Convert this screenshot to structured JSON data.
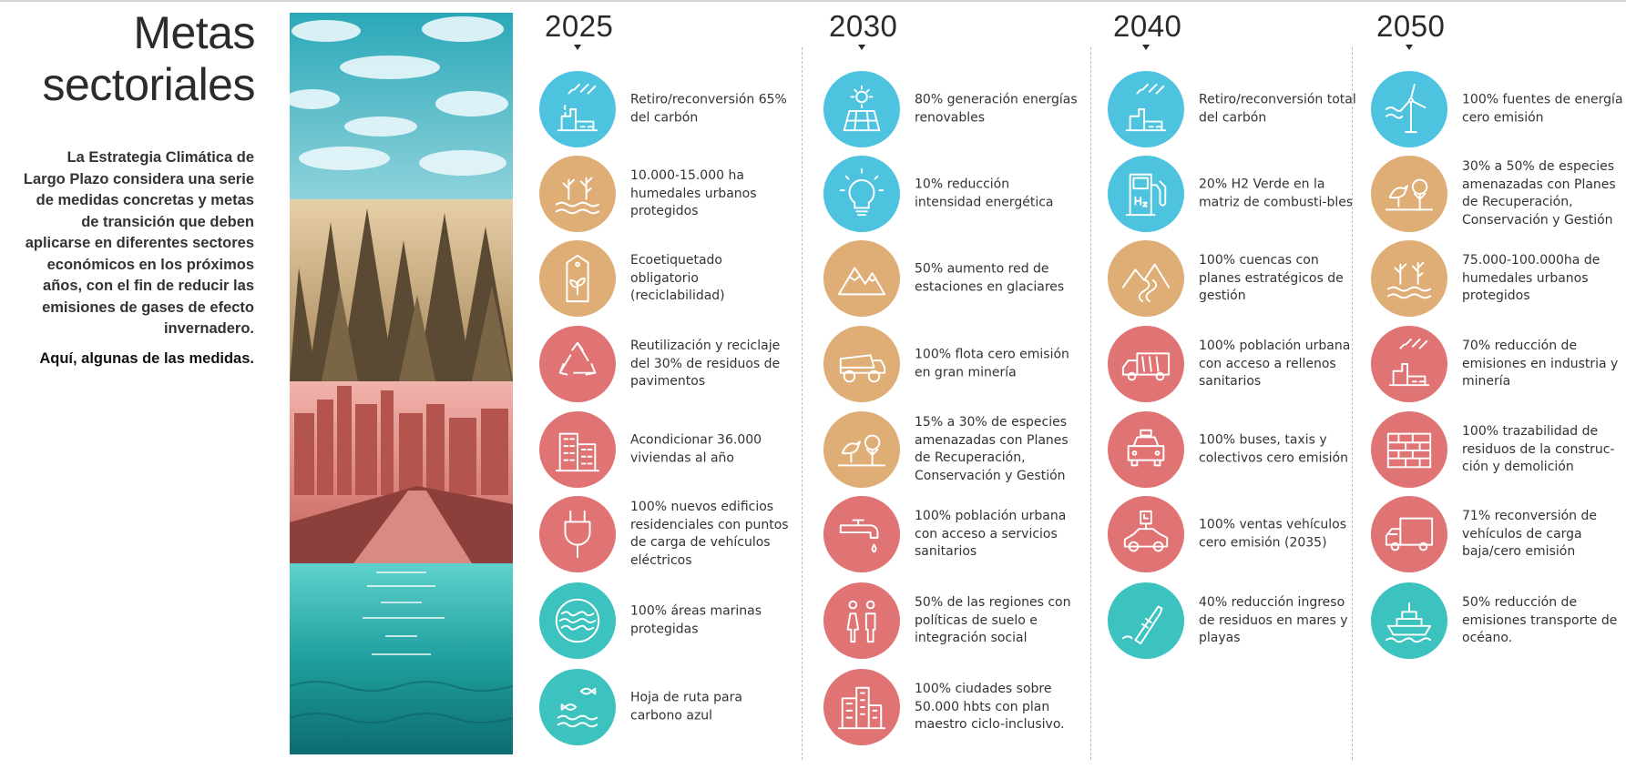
{
  "colors": {
    "blue": "#4ec3e0",
    "tan": "#dfae76",
    "red": "#e07373",
    "teal": "#3cc3bf"
  },
  "title": {
    "line1": "Metas",
    "line2": "sectoriales"
  },
  "intro": {
    "body": "La Estrategia Climática de Largo Plazo considera una serie de medidas concretas y metas de transición que deben aplicarse en diferentes sectores económicos en los próximos años, con el fin de reducir las emisiones de gases de efecto invernadero.",
    "cta": "Aquí, algunas de las medidas."
  },
  "columns": [
    {
      "year": "2025",
      "items": [
        {
          "icon": "coal-plant-icon",
          "color": "#4ec3e0",
          "text": "Retiro/reconversión 65% del carbón"
        },
        {
          "icon": "wetland-icon",
          "color": "#dfae76",
          "text": "10.000-15.000 ha humedales urbanos protegidos"
        },
        {
          "icon": "eco-label-icon",
          "color": "#dfae76",
          "text": "Ecoetiquetado obligatorio (reciclabilidad)"
        },
        {
          "icon": "recycle-icon",
          "color": "#e07373",
          "text": "Reutilización y reciclaje del 30% de residuos de pavimentos"
        },
        {
          "icon": "buildings-icon",
          "color": "#e07373",
          "text": "Acondicionar 36.000 viviendas al año"
        },
        {
          "icon": "plug-icon",
          "color": "#e07373",
          "text": "100% nuevos edificios residenciales con puntos de carga de vehículos eléctricos"
        },
        {
          "icon": "waves-icon",
          "color": "#3cc3bf",
          "text": "100% áreas marinas protegidas"
        },
        {
          "icon": "fish-icon",
          "color": "#3cc3bf",
          "text": "Hoja de ruta para carbono azul"
        }
      ]
    },
    {
      "year": "2030",
      "items": [
        {
          "icon": "solar-panel-icon",
          "color": "#4ec3e0",
          "text": "80% generación energías renovables"
        },
        {
          "icon": "lightbulb-icon",
          "color": "#4ec3e0",
          "text": "10% reducción intensidad energética"
        },
        {
          "icon": "mountains-icon",
          "color": "#dfae76",
          "text": "50% aumento red de estaciones en glaciares"
        },
        {
          "icon": "mining-truck-icon",
          "color": "#dfae76",
          "text": "100% flota cero emisión en gran minería"
        },
        {
          "icon": "bird-tree-icon",
          "color": "#dfae76",
          "text": "15% a 30% de especies amenazadas con Planes de Recuperación, Conservación y Gestión"
        },
        {
          "icon": "faucet-icon",
          "color": "#e07373",
          "text": "100% población urbana con acceso a servicios sanitarios"
        },
        {
          "icon": "people-icon",
          "color": "#e07373",
          "text": "50% de las regiones con políticas de suelo e integración social"
        },
        {
          "icon": "city-icon",
          "color": "#e07373",
          "text": "100% ciudades sobre 50.000 hbts con plan maestro ciclo-inclusivo."
        }
      ]
    },
    {
      "year": "2040",
      "items": [
        {
          "icon": "coal-plant-icon",
          "color": "#4ec3e0",
          "text": "Retiro/reconversión total del carbón"
        },
        {
          "icon": "h2-pump-icon",
          "color": "#4ec3e0",
          "text": "20% H2 Verde en la matriz de combusti-bles"
        },
        {
          "icon": "river-mountains-icon",
          "color": "#dfae76",
          "text": "100% cuencas con planes estratégicos de gestión"
        },
        {
          "icon": "garbage-truck-icon",
          "color": "#e07373",
          "text": "100% población urbana con acceso a rellenos sanitarios"
        },
        {
          "icon": "taxi-icon",
          "color": "#e07373",
          "text": "100% buses, taxis y colectivos cero emisión"
        },
        {
          "icon": "ev-car-icon",
          "color": "#e07373",
          "text": "100% ventas vehículos cero emisión (2035)"
        },
        {
          "icon": "bottle-icon",
          "color": "#3cc3bf",
          "text": "40% reducción ingreso de residuos en mares y playas"
        }
      ]
    },
    {
      "year": "2050",
      "items": [
        {
          "icon": "wind-turbine-icon",
          "color": "#4ec3e0",
          "text": "100% fuentes de energía cero emisión"
        },
        {
          "icon": "bird-tree-icon",
          "color": "#dfae76",
          "text": "30% a 50% de especies amenazadas con Planes de Recuperación, Conservación y Gestión"
        },
        {
          "icon": "wetland-icon",
          "color": "#dfae76",
          "text": "75.000-100.000ha de humedales urbanos protegidos"
        },
        {
          "icon": "factory-icon",
          "color": "#e07373",
          "text": "70% reducción de emisiones en industria y minería"
        },
        {
          "icon": "bricks-icon",
          "color": "#e07373",
          "text": "100% trazabilidad de residuos de la construc-ción y demolición"
        },
        {
          "icon": "cargo-truck-icon",
          "color": "#e07373",
          "text": "71% reconversión de vehículos de carga baja/cero emisión"
        },
        {
          "icon": "ship-icon",
          "color": "#3cc3bf",
          "text": "50% reducción de emisiones transporte de océano."
        }
      ]
    }
  ]
}
